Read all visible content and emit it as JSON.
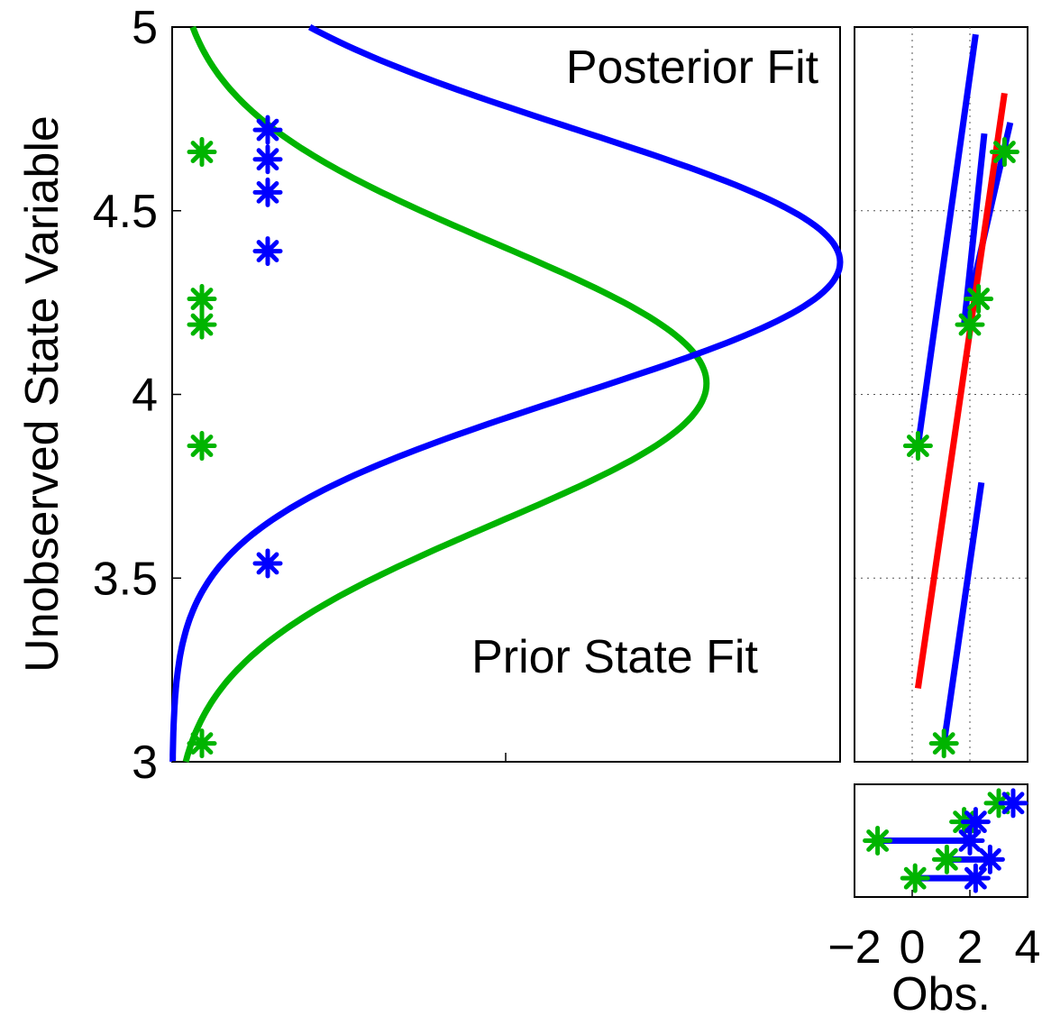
{
  "chart_data": [
    {
      "type": "scatter",
      "ylabel": "Unobserved State Variable",
      "ylim": [
        3,
        5
      ],
      "yticks": [
        3,
        3.5,
        4,
        4.5,
        5
      ],
      "ytick_labels": [
        "3",
        "3.5",
        "4",
        "4.5",
        "5"
      ],
      "xlim": [
        0,
        1
      ],
      "annotations": [
        "Posterior Fit",
        "Prior State Fit"
      ],
      "colors": {
        "prior": "#00b400",
        "posterior": "#0000ff"
      },
      "series": [
        {
          "values": [
            3.05,
            3.86,
            4.19,
            4.26,
            4.66
          ],
          "marker": "asterisk",
          "color": "#00b400"
        },
        {
          "values": [
            3.54,
            4.39,
            4.55,
            4.64,
            4.72
          ],
          "marker": "asterisk",
          "color": "#0000ff"
        }
      ],
      "curves": [
        {
          "label": "Prior State Fit",
          "color": "#00b400",
          "mean": 4.03,
          "sd": 0.38,
          "peak": 0.8
        },
        {
          "label": "Posterior Fit",
          "color": "#0000ff",
          "mean": 4.36,
          "sd": 0.36,
          "peak": 1.0
        }
      ]
    },
    {
      "type": "line",
      "xlim": [
        -2,
        4
      ],
      "ylim": [
        3,
        5
      ],
      "grid": true,
      "regression": {
        "color": "#ff0000",
        "x": [
          0.2,
          3.2
        ],
        "y": [
          3.2,
          4.82
        ]
      },
      "points": {
        "color": "#00b400",
        "x": [
          1.1,
          0.2,
          2.0,
          2.3,
          3.2
        ],
        "y": [
          3.05,
          3.86,
          4.19,
          4.26,
          4.66
        ]
      },
      "segments": {
        "color": "#0000ff",
        "items": [
          {
            "x": [
              1.1,
              2.4
            ],
            "y": [
              3.05,
              3.76
            ]
          },
          {
            "x": [
              0.2,
              2.2
            ],
            "y": [
              3.86,
              4.98
            ]
          },
          {
            "x": [
              1.8,
              2.5
            ],
            "y": [
              4.19,
              4.71
            ]
          },
          {
            "x": [
              2.0,
              3.4
            ],
            "y": [
              4.26,
              4.74
            ]
          }
        ]
      }
    },
    {
      "type": "scatter",
      "xlabel": "Obs.",
      "xlim": [
        -2,
        4
      ],
      "xticks": [
        -2,
        0,
        2,
        4
      ],
      "xtick_labels": [
        "−2",
        "0",
        "2",
        "4"
      ],
      "prior_obs": {
        "color": "#00b400",
        "x": [
          0.1,
          1.2,
          -1.2,
          1.8,
          3.0
        ],
        "y": [
          1,
          2,
          3,
          4,
          5
        ]
      },
      "posterior_obs": {
        "color": "#0000ff",
        "x": [
          2.2,
          2.7,
          2.0,
          2.2,
          3.5
        ],
        "y": [
          1,
          2,
          3,
          4,
          5
        ]
      },
      "shifts": [
        {
          "from": 0.1,
          "to": 2.2,
          "y": 1
        },
        {
          "from": 1.2,
          "to": 2.7,
          "y": 2
        },
        {
          "from": -1.2,
          "to": 2.0,
          "y": 3
        }
      ],
      "ylim": [
        0,
        6
      ]
    }
  ]
}
